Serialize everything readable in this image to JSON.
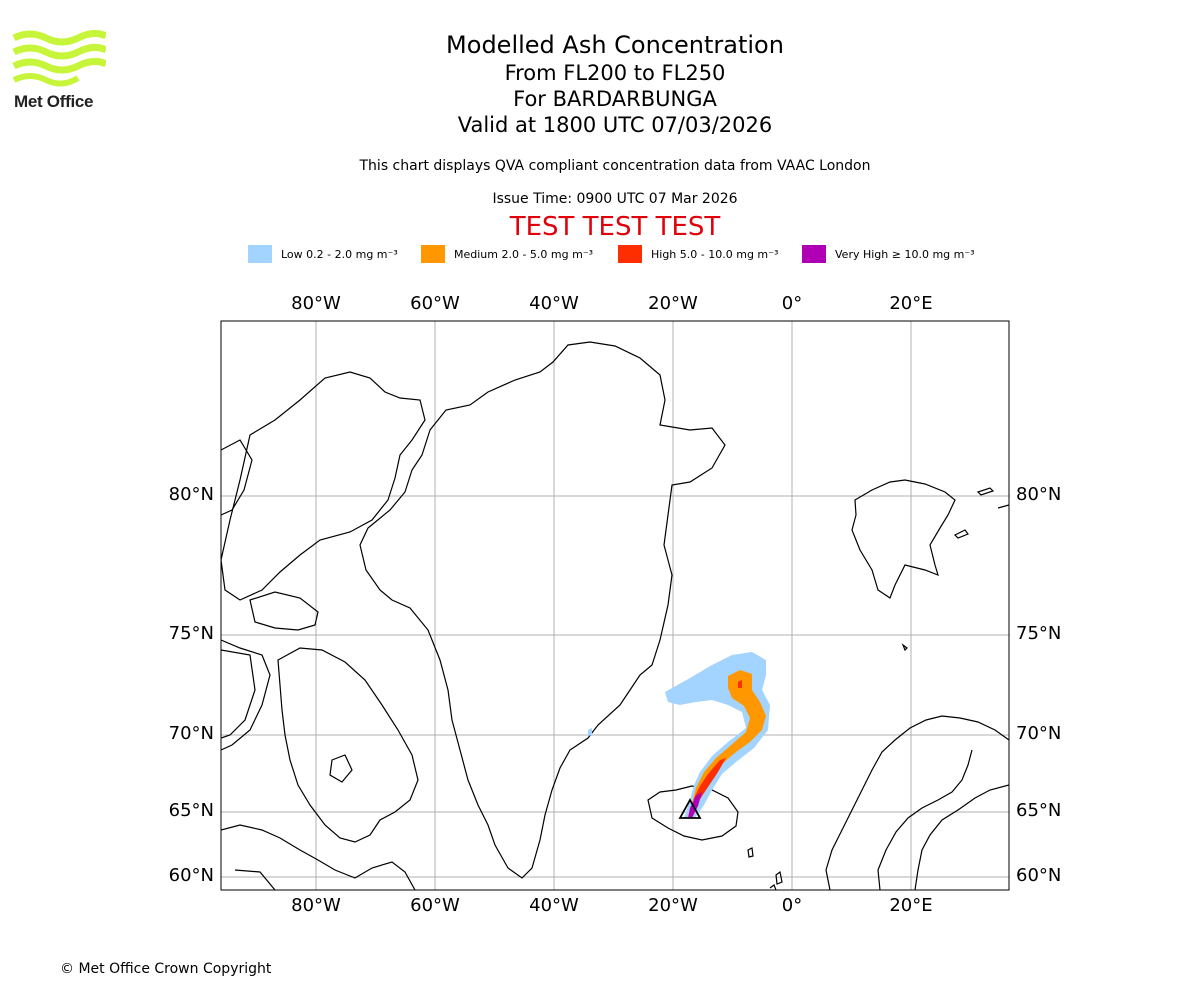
{
  "brand": {
    "name": "Met Office",
    "logo_color": "#c7f53a"
  },
  "header": {
    "title": "Modelled Ash Concentration",
    "levels": "From FL200 to FL250",
    "volcano": "For BARDARBUNGA",
    "valid": "Valid at 1800 UTC 07/03/2026",
    "note": "This chart displays QVA compliant concentration data from VAAC London",
    "issue": "Issue Time: 0900 UTC 07 Mar 2026",
    "test_banner": "TEST TEST TEST"
  },
  "legend": [
    {
      "label": "Low 0.2 - 2.0 mg m⁻³",
      "color": "#a3d4ff"
    },
    {
      "label": "Medium 2.0 - 5.0 mg m⁻³",
      "color": "#ff9800"
    },
    {
      "label": "High 5.0 - 10.0 mg m⁻³",
      "color": "#ff2e00"
    },
    {
      "label": "Very High  ≥  10.0 mg m⁻³",
      "color": "#b000b5"
    }
  ],
  "map": {
    "lon_labels": [
      "80°W",
      "60°W",
      "40°W",
      "20°W",
      "0°",
      "20°E"
    ],
    "lat_labels": [
      "80°N",
      "75°N",
      "70°N",
      "65°N",
      "60°N"
    ],
    "volcano_marker": "triangle"
  },
  "footer": {
    "copyright": "© Met Office Crown Copyright"
  }
}
